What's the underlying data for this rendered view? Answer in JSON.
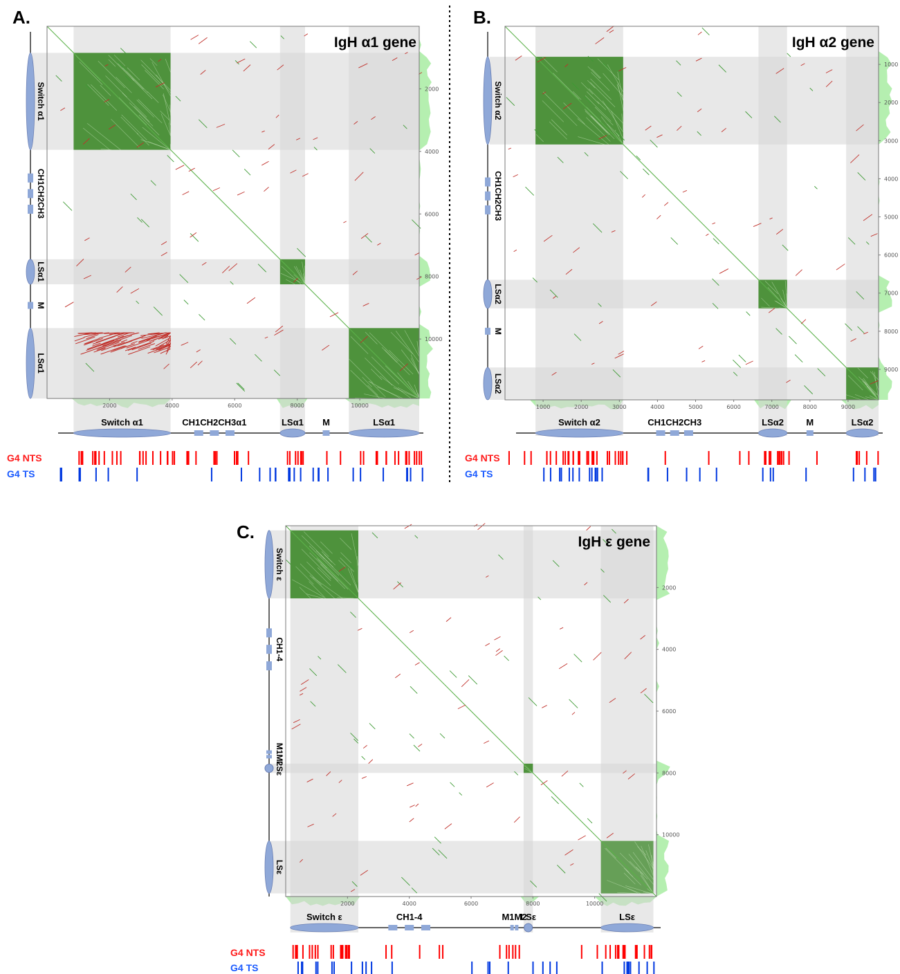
{
  "g4_labels": {
    "nts": "G4 NTS",
    "ts": "G4 TS"
  },
  "colors": {
    "self_match": "#3e8a2a",
    "inverted_match": "#c0302a",
    "shade": "#d6d6d6",
    "gene_feature": "#8fa8d8",
    "coverage_fill": "#b5efb0",
    "g4_nts": "#ff0000",
    "g4_ts": "#0038e0"
  },
  "panels": [
    {
      "id": "A",
      "label": "A.",
      "title": "IgH α1 gene",
      "range": 11900,
      "x_ticks": [
        2000,
        4000,
        6000,
        8000,
        10000
      ],
      "y_ticks": [
        2000,
        4000,
        6000,
        8000,
        10000
      ],
      "x_tick_labels": [
        "2000",
        "4000",
        "6000",
        "8000",
        "10000"
      ],
      "y_tick_labels": [
        "2000",
        "4000",
        "6000",
        "8000",
        "10000"
      ],
      "regions": [
        {
          "label": "Switch α1",
          "start": 850,
          "end": 3950,
          "shape": "ellipse"
        },
        {
          "label": "CH1CH2CH3α1",
          "start": 4600,
          "end": 6100,
          "shape": "exons"
        },
        {
          "label": "LSα1",
          "start": 7450,
          "end": 8250,
          "shape": "ellipse"
        },
        {
          "label": "M",
          "start": 8800,
          "end": 9050,
          "shape": "box"
        },
        {
          "label": "LSα1",
          "start": 9650,
          "end": 11900,
          "shape": "ellipse"
        }
      ],
      "y_regions": [
        {
          "label": "Switch α1"
        },
        {
          "label": "CH1CH2CH3"
        },
        {
          "label": "LSα1"
        },
        {
          "label": "M"
        },
        {
          "label": "LSα1"
        }
      ],
      "self_blocks": [
        [
          850,
          3950
        ],
        [
          7450,
          8250
        ],
        [
          9650,
          11900
        ]
      ],
      "inverted_blocks": [
        {
          "x": [
            850,
            3950
          ],
          "y": [
            9800,
            10500
          ]
        }
      ]
    },
    {
      "id": "B",
      "label": "B.",
      "title": "IgH α2 gene",
      "range": 9800,
      "x_ticks": [
        1000,
        2000,
        3000,
        4000,
        5000,
        6000,
        7000,
        8000,
        9000
      ],
      "y_ticks": [
        1000,
        2000,
        3000,
        4000,
        5000,
        6000,
        7000,
        8000,
        9000
      ],
      "x_tick_labels": [
        "1000",
        "2000",
        "3000",
        "4000",
        "5000",
        "6000",
        "7000",
        "8000",
        "9000"
      ],
      "y_tick_labels": [
        "1000",
        "2000",
        "3000",
        "4000",
        "5000",
        "6000",
        "7000",
        "8000",
        "9000"
      ],
      "regions": [
        {
          "label": "Switch α2",
          "start": 800,
          "end": 3100,
          "shape": "ellipse"
        },
        {
          "label": "CH1CH2CH3",
          "start": 3900,
          "end": 5000,
          "shape": "exons"
        },
        {
          "label": "LSα2",
          "start": 6650,
          "end": 7400,
          "shape": "ellipse"
        },
        {
          "label": "M",
          "start": 7900,
          "end": 8100,
          "shape": "box"
        },
        {
          "label": "LSα2",
          "start": 8950,
          "end": 9800,
          "shape": "ellipse"
        }
      ],
      "y_regions": [
        {
          "label": "Switch α2"
        },
        {
          "label": "CH1CH2CH3"
        },
        {
          "label": "LSα2"
        },
        {
          "label": "M"
        },
        {
          "label": "LSα2"
        }
      ],
      "self_blocks": [
        [
          800,
          3100
        ],
        [
          6650,
          7400
        ],
        [
          8950,
          9800
        ]
      ],
      "inverted_blocks": []
    },
    {
      "id": "C",
      "label": "C.",
      "title": "IgH ε gene",
      "range": 12000,
      "x_ticks": [
        2000,
        4000,
        6000,
        8000,
        10000
      ],
      "y_ticks": [
        2000,
        4000,
        6000,
        8000,
        10000
      ],
      "x_tick_labels": [
        "2000",
        "4000",
        "6000",
        "8000",
        "10000"
      ],
      "y_tick_labels": [
        "2000",
        "4000",
        "6000",
        "8000",
        "10000"
      ],
      "regions": [
        {
          "label": "Switch ε",
          "start": 150,
          "end": 2350,
          "shape": "ellipse"
        },
        {
          "label": "CH1-4",
          "start": 3200,
          "end": 4800,
          "shape": "exons"
        },
        {
          "label": "M1M2",
          "start": 7250,
          "end": 7550,
          "shape": "exons"
        },
        {
          "label": "LSε",
          "start": 7700,
          "end": 8000,
          "shape": "circle"
        },
        {
          "label": "LSε",
          "start": 10200,
          "end": 11900,
          "shape": "ellipse"
        }
      ],
      "y_regions": [
        {
          "label": "Switch ε"
        },
        {
          "label": "CH1-4"
        },
        {
          "label": "M1M2"
        },
        {
          "label": "LSε"
        },
        {
          "label": "LSε"
        }
      ],
      "self_blocks": [
        [
          150,
          2350
        ],
        [
          7700,
          8000
        ],
        [
          10200,
          11900
        ]
      ],
      "inverted_blocks": []
    }
  ]
}
